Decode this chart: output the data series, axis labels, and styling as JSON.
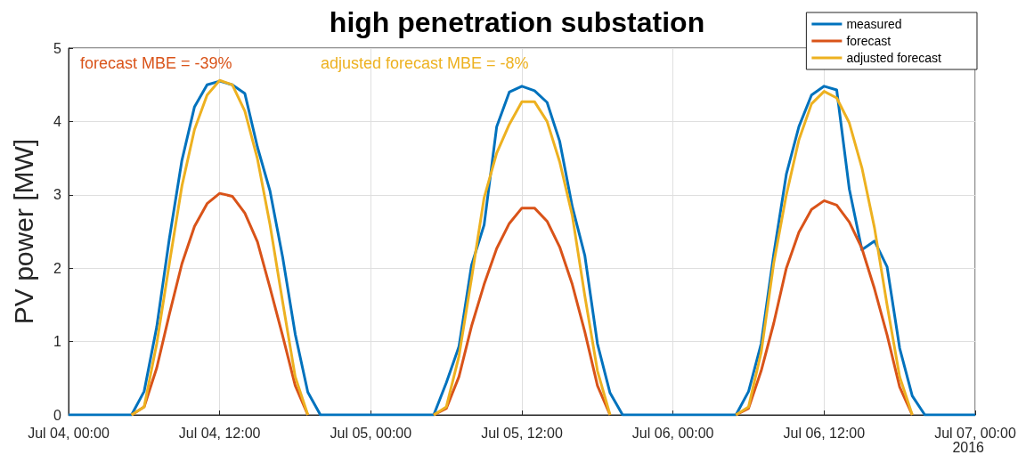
{
  "chart_data": {
    "type": "line",
    "title": "high penetration substation",
    "ylabel": "PV power [MW]",
    "xlim": [
      "2016-07-04T00:00",
      "2016-07-07T00:00"
    ],
    "xticks": [
      {
        "value": "2016-07-04T00:00",
        "label": "Jul 04, 00:00"
      },
      {
        "value": "2016-07-04T12:00",
        "label": "Jul 04, 12:00"
      },
      {
        "value": "2016-07-05T00:00",
        "label": "Jul 05, 00:00"
      },
      {
        "value": "2016-07-05T12:00",
        "label": "Jul 05, 12:00"
      },
      {
        "value": "2016-07-06T00:00",
        "label": "Jul 06, 00:00"
      },
      {
        "value": "2016-07-06T12:00",
        "label": "Jul 06, 12:00"
      },
      {
        "value": "2016-07-07T00:00",
        "label": "Jul 07, 00:00"
      }
    ],
    "ylim": [
      0,
      5
    ],
    "yticks": [
      0,
      1,
      2,
      3,
      4,
      5
    ],
    "grid": true,
    "legend": "top right",
    "marker": "none",
    "line_style": "solid",
    "annotations": [
      "forecast MBE = -39%",
      "adjusted forecast MBE = -8%",
      "2016"
    ],
    "series": [
      {
        "name": "measured",
        "color": "#0072bd",
        "x": [
          "2016-07-04T00:00",
          "2016-07-04T05:00",
          "2016-07-04T06:00",
          "2016-07-04T07:00",
          "2016-07-04T08:00",
          "2016-07-04T09:00",
          "2016-07-04T10:00",
          "2016-07-04T11:00",
          "2016-07-04T12:00",
          "2016-07-04T13:00",
          "2016-07-04T14:00",
          "2016-07-04T15:00",
          "2016-07-04T16:00",
          "2016-07-04T17:00",
          "2016-07-04T18:00",
          "2016-07-04T19:00",
          "2016-07-04T20:00",
          "2016-07-05T05:00",
          "2016-07-05T06:00",
          "2016-07-05T07:00",
          "2016-07-05T08:00",
          "2016-07-05T09:00",
          "2016-07-05T10:00",
          "2016-07-05T11:00",
          "2016-07-05T12:00",
          "2016-07-05T13:00",
          "2016-07-05T14:00",
          "2016-07-05T15:00",
          "2016-07-05T16:00",
          "2016-07-05T17:00",
          "2016-07-05T18:00",
          "2016-07-05T19:00",
          "2016-07-05T20:00",
          "2016-07-06T05:00",
          "2016-07-06T06:00",
          "2016-07-06T07:00",
          "2016-07-06T08:00",
          "2016-07-06T09:00",
          "2016-07-06T10:00",
          "2016-07-06T11:00",
          "2016-07-06T12:00",
          "2016-07-06T13:00",
          "2016-07-06T14:00",
          "2016-07-06T15:00",
          "2016-07-06T16:00",
          "2016-07-06T17:00",
          "2016-07-06T18:00",
          "2016-07-06T19:00",
          "2016-07-06T20:00",
          "2016-07-07T00:00"
        ],
        "values": [
          0,
          0,
          0.32,
          1.2,
          2.4,
          3.47,
          4.2,
          4.5,
          4.55,
          4.5,
          4.38,
          3.65,
          3.05,
          2.15,
          1.1,
          0.31,
          0,
          0,
          0.44,
          0.93,
          2.04,
          2.59,
          3.93,
          4.4,
          4.48,
          4.42,
          4.26,
          3.73,
          2.84,
          2.17,
          0.97,
          0.3,
          0,
          0,
          0.32,
          0.97,
          2.19,
          3.28,
          3.93,
          4.36,
          4.48,
          4.43,
          3.08,
          2.25,
          2.37,
          2.02,
          0.91,
          0.26,
          0,
          0
        ]
      },
      {
        "name": "forecast",
        "color": "#d95319",
        "x": [
          "2016-07-04T05:00",
          "2016-07-04T06:00",
          "2016-07-04T07:00",
          "2016-07-04T08:00",
          "2016-07-04T09:00",
          "2016-07-04T10:00",
          "2016-07-04T11:00",
          "2016-07-04T12:00",
          "2016-07-04T13:00",
          "2016-07-04T14:00",
          "2016-07-04T15:00",
          "2016-07-04T16:00",
          "2016-07-04T17:00",
          "2016-07-04T18:00",
          "2016-07-04T19:00",
          "2016-07-05T00:00",
          "2016-07-05T05:00",
          "2016-07-05T06:00",
          "2016-07-05T07:00",
          "2016-07-05T08:00",
          "2016-07-05T09:00",
          "2016-07-05T10:00",
          "2016-07-05T11:00",
          "2016-07-05T12:00",
          "2016-07-05T13:00",
          "2016-07-05T14:00",
          "2016-07-05T15:00",
          "2016-07-05T16:00",
          "2016-07-05T17:00",
          "2016-07-05T18:00",
          "2016-07-05T19:00",
          "2016-07-06T00:00",
          "2016-07-06T05:00",
          "2016-07-06T06:00",
          "2016-07-06T07:00",
          "2016-07-06T08:00",
          "2016-07-06T09:00",
          "2016-07-06T10:00",
          "2016-07-06T11:00",
          "2016-07-06T12:00",
          "2016-07-06T13:00",
          "2016-07-06T14:00",
          "2016-07-06T15:00",
          "2016-07-06T16:00",
          "2016-07-06T17:00",
          "2016-07-06T18:00",
          "2016-07-06T19:00"
        ],
        "values": [
          0,
          0.11,
          0.64,
          1.37,
          2.06,
          2.57,
          2.88,
          3.02,
          2.98,
          2.75,
          2.36,
          1.73,
          1.08,
          0.4,
          0,
          null,
          0,
          0.09,
          0.52,
          1.21,
          1.78,
          2.27,
          2.61,
          2.82,
          2.82,
          2.64,
          2.29,
          1.78,
          1.13,
          0.4,
          0,
          null,
          0,
          0.09,
          0.6,
          1.25,
          2.0,
          2.49,
          2.8,
          2.92,
          2.86,
          2.63,
          2.27,
          1.72,
          1.09,
          0.38,
          0
        ]
      },
      {
        "name": "adjusted forecast",
        "color": "#edb120",
        "x": [
          "2016-07-04T05:00",
          "2016-07-04T06:00",
          "2016-07-04T07:00",
          "2016-07-04T08:00",
          "2016-07-04T09:00",
          "2016-07-04T10:00",
          "2016-07-04T11:00",
          "2016-07-04T12:00",
          "2016-07-04T13:00",
          "2016-07-04T14:00",
          "2016-07-04T15:00",
          "2016-07-04T16:00",
          "2016-07-04T17:00",
          "2016-07-04T18:00",
          "2016-07-04T19:00",
          "2016-07-05T00:00",
          "2016-07-05T05:00",
          "2016-07-05T06:00",
          "2016-07-05T07:00",
          "2016-07-05T08:00",
          "2016-07-05T09:00",
          "2016-07-05T10:00",
          "2016-07-05T11:00",
          "2016-07-05T12:00",
          "2016-07-05T13:00",
          "2016-07-05T14:00",
          "2016-07-05T15:00",
          "2016-07-05T16:00",
          "2016-07-05T17:00",
          "2016-07-05T18:00",
          "2016-07-05T19:00",
          "2016-07-06T00:00",
          "2016-07-06T05:00",
          "2016-07-06T06:00",
          "2016-07-06T07:00",
          "2016-07-06T08:00",
          "2016-07-06T09:00",
          "2016-07-06T10:00",
          "2016-07-06T11:00",
          "2016-07-06T12:00",
          "2016-07-06T13:00",
          "2016-07-06T14:00",
          "2016-07-06T15:00",
          "2016-07-06T16:00",
          "2016-07-06T17:00",
          "2016-07-06T18:00",
          "2016-07-06T19:00"
        ],
        "values": [
          0,
          0.11,
          0.97,
          2.06,
          3.12,
          3.89,
          4.36,
          4.56,
          4.5,
          4.14,
          3.49,
          2.59,
          1.54,
          0.52,
          0,
          null,
          0,
          0.11,
          0.8,
          1.86,
          2.96,
          3.57,
          3.96,
          4.27,
          4.27,
          4.0,
          3.45,
          2.72,
          1.62,
          0.6,
          0,
          null,
          0,
          0.11,
          0.85,
          2.07,
          3.0,
          3.75,
          4.24,
          4.41,
          4.32,
          3.98,
          3.37,
          2.55,
          1.5,
          0.52,
          0
        ]
      }
    ]
  }
}
